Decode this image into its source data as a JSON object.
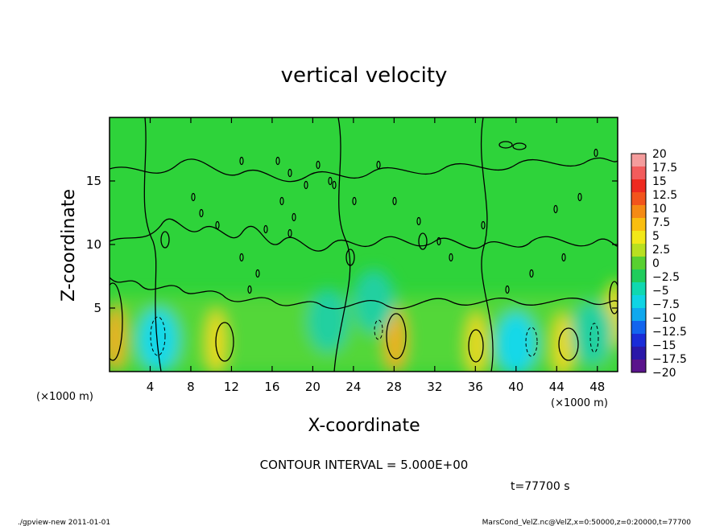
{
  "chart_data": {
    "type": "heatmap",
    "title": "vertical velocity",
    "xlabel": "X-coordinate",
    "ylabel": "Z-coordinate",
    "x_unit": "(×1000 m)",
    "z_unit": "(×1000 m)",
    "xlim": [
      0,
      50
    ],
    "ylim": [
      0,
      20
    ],
    "x_ticks": [
      4,
      8,
      12,
      16,
      20,
      24,
      28,
      32,
      36,
      40,
      44,
      48
    ],
    "y_ticks": [
      5,
      10,
      15
    ],
    "colorbar": {
      "labels": [
        "20",
        "17.5",
        "15",
        "12.5",
        "10",
        "7.5",
        "5",
        "2.5",
        "0",
        "−2.5",
        "−5",
        "−7.5",
        "−10",
        "−12.5",
        "−15",
        "−17.5",
        "−20"
      ],
      "colors": [
        "#f49c9c",
        "#f25c5c",
        "#ee2a20",
        "#f2541c",
        "#f58a14",
        "#f9be10",
        "#f2e818",
        "#b8e020",
        "#58d030",
        "#20cc5c",
        "#10d8b0",
        "#10d4e4",
        "#10a8ee",
        "#1264ee",
        "#1a2cd8",
        "#2a18a8",
        "#5a148c"
      ]
    },
    "updrafts": [
      {
        "x": 0.5,
        "z": 2.6,
        "w": 8
      },
      {
        "x": 10.5,
        "z": 2.3,
        "w": 6
      },
      {
        "x": 28.1,
        "z": 2.5,
        "w": 7
      },
      {
        "x": 36.1,
        "z": 2.1,
        "w": 5
      },
      {
        "x": 44.6,
        "z": 2.0,
        "w": 6
      },
      {
        "x": 49.8,
        "z": 4.5,
        "w": 5
      }
    ],
    "downdrafts": [
      {
        "x": 4.8,
        "z": 2.5,
        "w": -8
      },
      {
        "x": 21.5,
        "z": 4.0,
        "w": -4
      },
      {
        "x": 26.0,
        "z": 5.5,
        "w": -4
      },
      {
        "x": 40.0,
        "z": 2.2,
        "w": -9
      },
      {
        "x": 47.5,
        "z": 3.0,
        "w": -4
      }
    ],
    "contour_interval_label": "CONTOUR INTERVAL = 5.000E+00"
  },
  "time_label": "t=77700 s",
  "footer": {
    "left": "./gpview-new  2011-01-01",
    "right": "MarsCond_VelZ.nc@VelZ,x=0:50000,z=0:20000,t=77700"
  }
}
